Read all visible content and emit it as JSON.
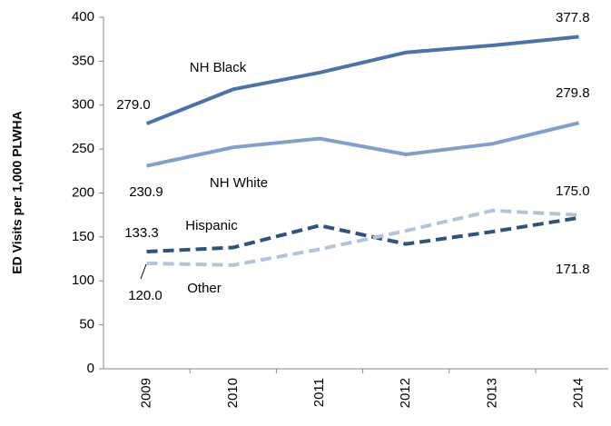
{
  "chart_data": {
    "type": "line",
    "y_label": "ED Visits per 1,000 PLWHA",
    "categories": [
      "2009",
      "2010",
      "2011",
      "2012",
      "2013",
      "2014"
    ],
    "ylim": [
      0,
      400
    ],
    "yticks": [
      0,
      50,
      100,
      150,
      200,
      250,
      300,
      350,
      400
    ],
    "series": [
      {
        "name": "NH Black",
        "color": "#4a72ae",
        "dashed": false,
        "values": [
          279.0,
          318,
          337,
          360,
          368,
          377.8
        ],
        "value_labels": [
          "279.0",
          null,
          null,
          null,
          null,
          "377.8"
        ]
      },
      {
        "name": "NH White",
        "color": "#7f9fcf",
        "dashed": false,
        "values": [
          230.9,
          252,
          262,
          244,
          256,
          279.8
        ],
        "value_labels": [
          "230.9",
          null,
          null,
          null,
          null,
          "279.8"
        ]
      },
      {
        "name": "Hispanic",
        "color": "#2f5282",
        "dashed": true,
        "values": [
          133.3,
          138,
          163,
          142,
          156,
          171.8
        ],
        "value_labels": [
          "133.3",
          null,
          null,
          null,
          null,
          "171.8"
        ]
      },
      {
        "name": "Other",
        "color": "#b4c3dc",
        "dashed": true,
        "values": [
          120.0,
          118,
          136,
          157,
          180,
          175.0
        ],
        "value_labels": [
          "120.0",
          null,
          null,
          null,
          null,
          "175.0"
        ]
      }
    ]
  }
}
